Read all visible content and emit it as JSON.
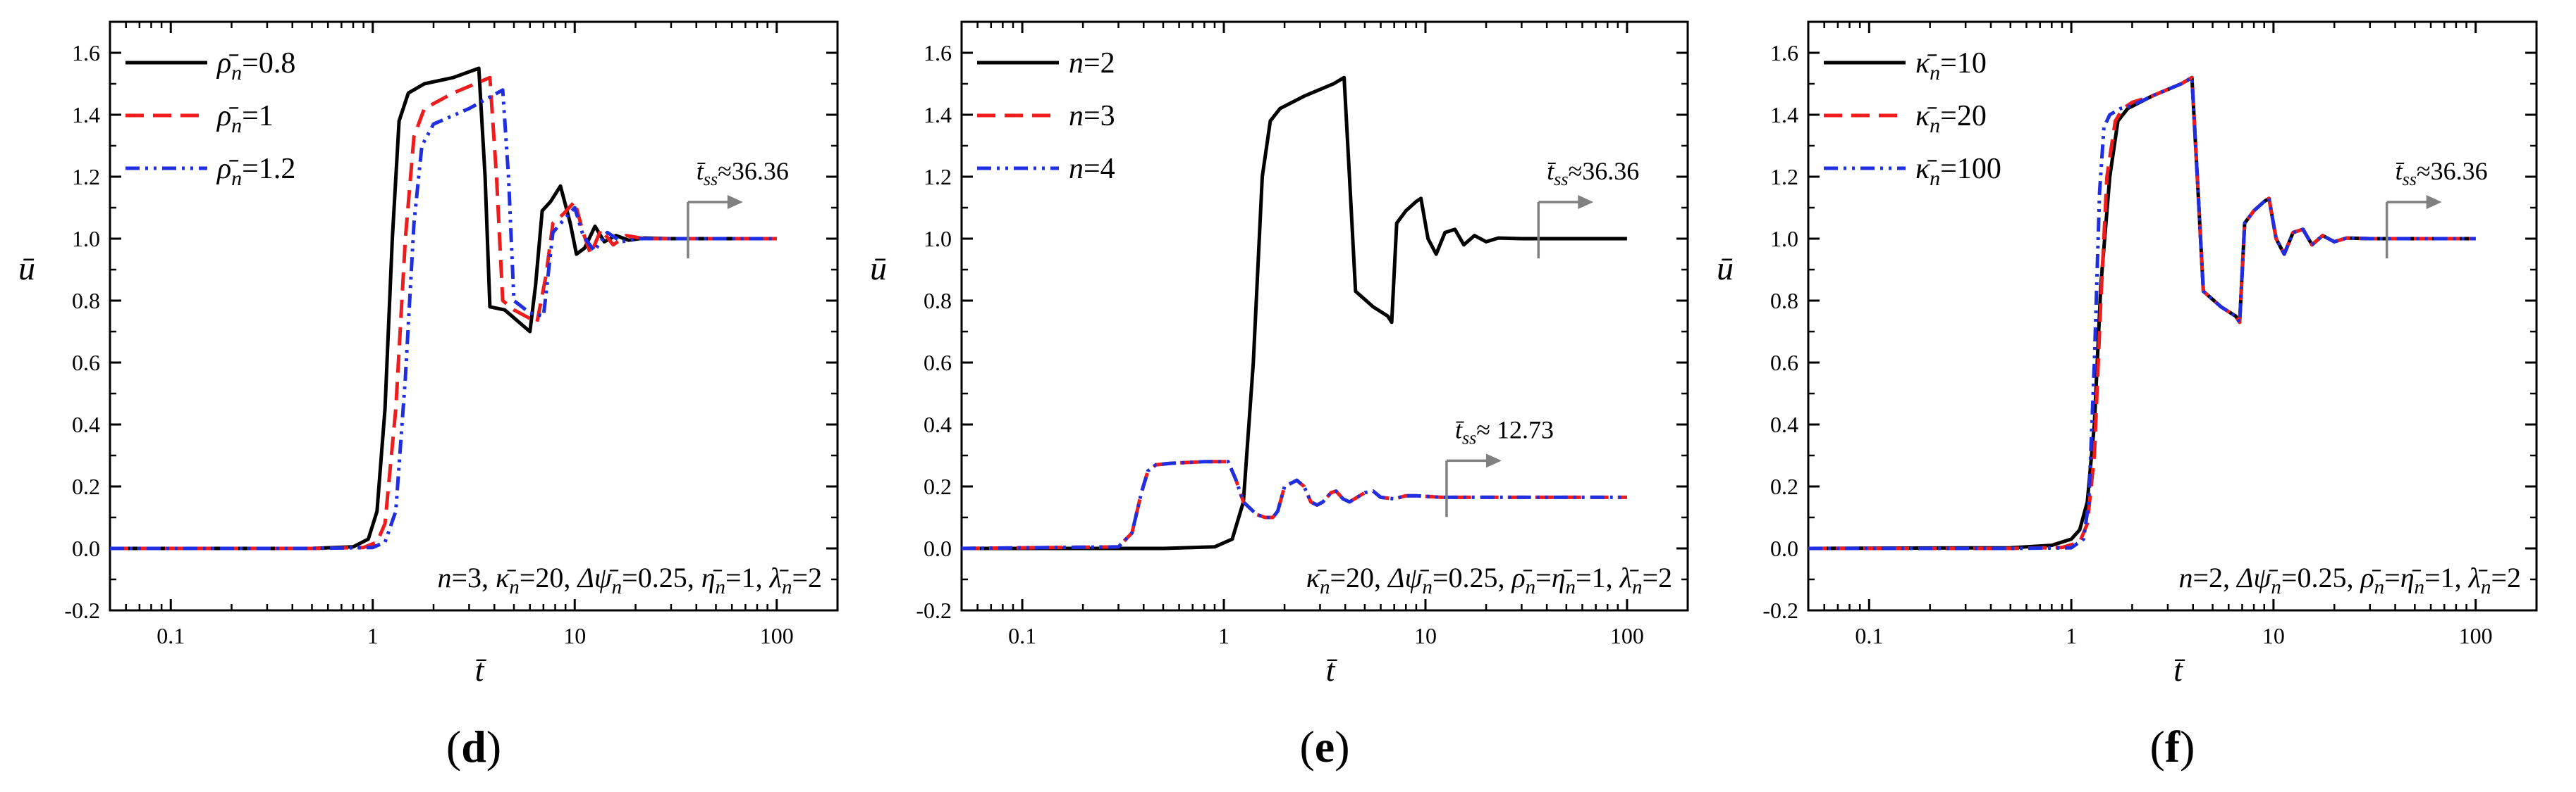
{
  "chart_data": [
    {
      "type": "line",
      "panel_label": "(d)",
      "title": "",
      "xlabel": "t̄",
      "ylabel": "ū",
      "xscale": "log",
      "xlim": [
        0.05,
        200
      ],
      "ylim": [
        -0.2,
        1.7
      ],
      "xticks": [
        0.1,
        1,
        10,
        100
      ],
      "xtick_labels": [
        "0.1",
        "1",
        "10",
        "100"
      ],
      "yticks": [
        -0.2,
        0.0,
        0.2,
        0.4,
        0.6,
        0.8,
        1.0,
        1.2,
        1.4,
        1.6
      ],
      "ytick_labels": [
        "-0.2",
        "0.0",
        "0.2",
        "0.4",
        "0.6",
        "0.8",
        "1.0",
        "1.2",
        "1.4",
        "1.6"
      ],
      "legend_position": "top-left",
      "series": [
        {
          "name": "ρ̄n=0.8",
          "legend_main": "ρ̄",
          "legend_sub": "n",
          "legend_value": "=0.8",
          "color": "#000000",
          "dash": "solid",
          "x": [
            0.05,
            0.5,
            0.8,
            0.95,
            1.05,
            1.15,
            1.25,
            1.35,
            1.5,
            1.8,
            2.5,
            3.35,
            3.6,
            3.8,
            4.5,
            6.0,
            6.4,
            6.9,
            7.6,
            8.5,
            9.5,
            10.2,
            11.2,
            12.6,
            14.0,
            16.0,
            18.5,
            22.0,
            30.0,
            50.0,
            100.0
          ],
          "y": [
            0,
            0,
            0.005,
            0.03,
            0.12,
            0.45,
            1.0,
            1.38,
            1.47,
            1.5,
            1.52,
            1.55,
            1.2,
            0.78,
            0.77,
            0.7,
            0.85,
            1.09,
            1.12,
            1.17,
            1.05,
            0.95,
            0.97,
            1.04,
            0.99,
            1.01,
            0.995,
            1.002,
            1.0,
            1.0,
            1.0
          ]
        },
        {
          "name": "ρ̄n=1",
          "legend_main": "ρ̄",
          "legend_sub": "n",
          "legend_value": "=1",
          "color": "#ee1c1c",
          "dash": "dash",
          "x": [
            0.05,
            0.5,
            0.9,
            1.05,
            1.15,
            1.3,
            1.45,
            1.6,
            1.8,
            2.5,
            3.8,
            4.1,
            4.4,
            5.0,
            6.5,
            7.2,
            7.8,
            8.8,
            10.0,
            11.0,
            12.0,
            13.5,
            15.5,
            18.0,
            22.0,
            30.0,
            50.0,
            100.0
          ],
          "y": [
            0,
            0,
            0.003,
            0.02,
            0.08,
            0.45,
            1.0,
            1.33,
            1.42,
            1.47,
            1.52,
            1.2,
            0.8,
            0.77,
            0.73,
            0.88,
            1.05,
            1.08,
            1.12,
            1.02,
            0.95,
            1.03,
            0.98,
            1.01,
            1.0,
            1.0,
            1.0,
            1.0
          ]
        },
        {
          "name": "ρ̄n=1.2",
          "legend_main": "ρ̄",
          "legend_sub": "n",
          "legend_value": "=1.2",
          "color": "#1f2ee0",
          "dash": "dashdotdot",
          "x": [
            0.05,
            0.5,
            1.0,
            1.15,
            1.3,
            1.45,
            1.6,
            1.75,
            2.0,
            3.0,
            4.4,
            4.7,
            5.0,
            6.0,
            7.0,
            7.8,
            8.8,
            10.0,
            11.0,
            12.5,
            14.5,
            17.0,
            21.0,
            30.0,
            50.0,
            100.0
          ],
          "y": [
            0,
            0,
            0.003,
            0.02,
            0.12,
            0.55,
            1.05,
            1.3,
            1.37,
            1.42,
            1.48,
            1.2,
            0.8,
            0.76,
            0.75,
            1.02,
            1.06,
            1.1,
            1.01,
            0.96,
            1.02,
            0.99,
            1.0,
            1.0,
            1.0,
            1.0
          ]
        }
      ],
      "annotations": [
        {
          "text_main": "t̄",
          "text_sub": "ss",
          "text_value": "≈36.36",
          "x": 36.36,
          "y": 1.0
        },
        {
          "text": "n=3, κ̄n=20, Δψ̄n=0.25, η̄n=1, λ̄n=2"
        }
      ]
    },
    {
      "type": "line",
      "panel_label": "(e)",
      "title": "",
      "xlabel": "t̄",
      "ylabel": "ū",
      "xscale": "log",
      "xlim": [
        0.05,
        200
      ],
      "ylim": [
        -0.2,
        1.7
      ],
      "xticks": [
        0.1,
        1,
        10,
        100
      ],
      "xtick_labels": [
        "0.1",
        "1",
        "10",
        "100"
      ],
      "yticks": [
        -0.2,
        0.0,
        0.2,
        0.4,
        0.6,
        0.8,
        1.0,
        1.2,
        1.4,
        1.6
      ],
      "ytick_labels": [
        "-0.2",
        "0.0",
        "0.2",
        "0.4",
        "0.6",
        "0.8",
        "1.0",
        "1.2",
        "1.4",
        "1.6"
      ],
      "legend_position": "top-left",
      "series": [
        {
          "name": "n=2",
          "legend_main": "n",
          "legend_sub": "",
          "legend_value": "=2",
          "color": "#000000",
          "dash": "solid",
          "x": [
            0.05,
            0.5,
            0.9,
            1.1,
            1.25,
            1.4,
            1.55,
            1.7,
            1.9,
            2.5,
            3.5,
            3.95,
            4.2,
            4.5,
            5.5,
            6.5,
            6.8,
            7.2,
            8.0,
            9.0,
            9.5,
            10.3,
            11.3,
            12.5,
            14.0,
            15.5,
            17.5,
            20.0,
            23.0,
            30.0,
            50.0,
            100.0
          ],
          "y": [
            0,
            0,
            0.005,
            0.03,
            0.15,
            0.6,
            1.2,
            1.38,
            1.42,
            1.46,
            1.5,
            1.52,
            1.2,
            0.83,
            0.78,
            0.75,
            0.73,
            1.05,
            1.09,
            1.12,
            1.13,
            1.0,
            0.95,
            1.02,
            1.03,
            0.98,
            1.01,
            0.99,
            1.002,
            1.0,
            1.0,
            1.0
          ]
        },
        {
          "name": "n=3",
          "legend_main": "n",
          "legend_sub": "",
          "legend_value": "=3",
          "color": "#ee1c1c",
          "dash": "dash",
          "x": [
            0.05,
            0.3,
            0.35,
            0.39,
            0.42,
            0.46,
            0.55,
            0.8,
            1.05,
            1.15,
            1.25,
            1.45,
            1.6,
            1.75,
            1.85,
            2.0,
            2.3,
            2.5,
            2.7,
            2.9,
            3.1,
            3.4,
            3.6,
            3.9,
            4.2,
            5.0,
            5.5,
            6.0,
            7.0,
            8.0,
            9.0,
            12.0,
            100.0
          ],
          "y": [
            0,
            0.005,
            0.05,
            0.18,
            0.25,
            0.27,
            0.275,
            0.28,
            0.28,
            0.22,
            0.15,
            0.11,
            0.1,
            0.1,
            0.12,
            0.2,
            0.22,
            0.2,
            0.15,
            0.14,
            0.15,
            0.18,
            0.185,
            0.16,
            0.15,
            0.18,
            0.185,
            0.165,
            0.16,
            0.17,
            0.17,
            0.165,
            0.165
          ]
        },
        {
          "name": "n=4",
          "legend_main": "n",
          "legend_sub": "",
          "legend_value": "=4",
          "color": "#1f2ee0",
          "dash": "dashdotdot",
          "x": [
            0.05,
            0.3,
            0.35,
            0.39,
            0.42,
            0.46,
            0.55,
            0.8,
            1.05,
            1.15,
            1.25,
            1.45,
            1.6,
            1.75,
            1.85,
            2.0,
            2.3,
            2.5,
            2.7,
            2.9,
            3.1,
            3.4,
            3.6,
            3.9,
            4.2,
            5.0,
            5.5,
            6.0,
            7.0,
            8.0,
            9.0,
            12.0,
            100.0
          ],
          "y": [
            0,
            0.005,
            0.05,
            0.18,
            0.25,
            0.27,
            0.275,
            0.28,
            0.28,
            0.22,
            0.15,
            0.11,
            0.1,
            0.1,
            0.12,
            0.2,
            0.22,
            0.2,
            0.15,
            0.14,
            0.15,
            0.18,
            0.185,
            0.16,
            0.15,
            0.18,
            0.185,
            0.165,
            0.16,
            0.17,
            0.17,
            0.165,
            0.165
          ]
        }
      ],
      "annotations": [
        {
          "text_main": "t̄",
          "text_sub": "ss",
          "text_value": "≈36.36",
          "x": 36.36,
          "y": 1.0
        },
        {
          "text_main": "t̄",
          "text_sub": "ss",
          "text_value": "≈ 12.73",
          "x": 12.73,
          "y": 0.165
        },
        {
          "text": "κ̄n=20, Δψ̄n=0.25, ρ̄n=η̄n=1, λ̄n=2"
        }
      ]
    },
    {
      "type": "line",
      "panel_label": "(f)",
      "title": "",
      "xlabel": "t̄",
      "ylabel": "ū",
      "xscale": "log",
      "xlim": [
        0.05,
        200
      ],
      "ylim": [
        -0.2,
        1.7
      ],
      "xticks": [
        0.1,
        1,
        10,
        100
      ],
      "xtick_labels": [
        "0.1",
        "1",
        "10",
        "100"
      ],
      "yticks": [
        -0.2,
        0.0,
        0.2,
        0.4,
        0.6,
        0.8,
        1.0,
        1.2,
        1.4,
        1.6
      ],
      "ytick_labels": [
        "-0.2",
        "0.0",
        "0.2",
        "0.4",
        "0.6",
        "0.8",
        "1.0",
        "1.2",
        "1.4",
        "1.6"
      ],
      "legend_position": "top-left",
      "series": [
        {
          "name": "κ̄n=10",
          "legend_main": "κ̄",
          "legend_sub": "n",
          "legend_value": "=10",
          "color": "#000000",
          "dash": "solid",
          "x": [
            0.05,
            0.5,
            0.8,
            1.0,
            1.1,
            1.2,
            1.3,
            1.4,
            1.55,
            1.7,
            1.9,
            2.5,
            3.5,
            3.95,
            4.2,
            4.5,
            5.5,
            6.5,
            6.8,
            7.2,
            8.0,
            9.0,
            9.5,
            10.3,
            11.3,
            12.5,
            14.0,
            15.5,
            17.5,
            20.0,
            23.0,
            30.0,
            50.0,
            100.0
          ],
          "y": [
            0,
            0.002,
            0.01,
            0.03,
            0.06,
            0.15,
            0.4,
            0.85,
            1.2,
            1.38,
            1.42,
            1.46,
            1.5,
            1.52,
            1.2,
            0.83,
            0.78,
            0.75,
            0.73,
            1.05,
            1.09,
            1.12,
            1.13,
            1.0,
            0.95,
            1.02,
            1.03,
            0.98,
            1.01,
            0.99,
            1.002,
            1.0,
            1.0,
            1.0
          ]
        },
        {
          "name": "κ̄n=20",
          "legend_main": "κ̄",
          "legend_sub": "n",
          "legend_value": "=20",
          "color": "#ee1c1c",
          "dash": "dash",
          "x": [
            0.05,
            0.5,
            0.9,
            1.1,
            1.2,
            1.3,
            1.4,
            1.5,
            1.65,
            1.8,
            2.0,
            2.5,
            3.5,
            3.95,
            4.2,
            4.5,
            5.5,
            6.5,
            6.8,
            7.2,
            8.0,
            9.0,
            9.5,
            10.3,
            11.3,
            12.5,
            14.0,
            15.5,
            17.5,
            20.0,
            23.0,
            30.0,
            50.0,
            100.0
          ],
          "y": [
            0,
            0,
            0.003,
            0.02,
            0.08,
            0.3,
            0.8,
            1.2,
            1.38,
            1.42,
            1.44,
            1.46,
            1.5,
            1.52,
            1.2,
            0.83,
            0.78,
            0.75,
            0.73,
            1.05,
            1.09,
            1.12,
            1.13,
            1.0,
            0.95,
            1.02,
            1.03,
            0.98,
            1.01,
            0.99,
            1.002,
            1.0,
            1.0,
            1.0
          ]
        },
        {
          "name": "κ̄n=100",
          "legend_main": "κ̄",
          "legend_sub": "n",
          "legend_value": "=100",
          "color": "#1f2ee0",
          "dash": "dashdotdot",
          "x": [
            0.05,
            0.5,
            1.0,
            1.15,
            1.22,
            1.3,
            1.38,
            1.45,
            1.55,
            1.75,
            2.0,
            2.5,
            3.5,
            3.95,
            4.2,
            4.5,
            5.5,
            6.5,
            6.8,
            7.2,
            8.0,
            9.0,
            9.5,
            10.3,
            11.3,
            12.5,
            14.0,
            15.5,
            17.5,
            20.0,
            23.0,
            30.0,
            50.0,
            100.0
          ],
          "y": [
            0,
            0,
            0.002,
            0.03,
            0.15,
            0.6,
            1.15,
            1.36,
            1.4,
            1.42,
            1.43,
            1.46,
            1.5,
            1.52,
            1.2,
            0.83,
            0.78,
            0.75,
            0.73,
            1.05,
            1.09,
            1.12,
            1.13,
            1.0,
            0.95,
            1.02,
            1.03,
            0.98,
            1.01,
            0.99,
            1.002,
            1.0,
            1.0,
            1.0
          ]
        }
      ],
      "annotations": [
        {
          "text_main": "t̄",
          "text_sub": "ss",
          "text_value": "≈36.36",
          "x": 36.36,
          "y": 1.0
        },
        {
          "text": "n=2, Δψ̄n=0.25, ρ̄n=η̄n=1, λ̄n=2"
        }
      ]
    }
  ]
}
